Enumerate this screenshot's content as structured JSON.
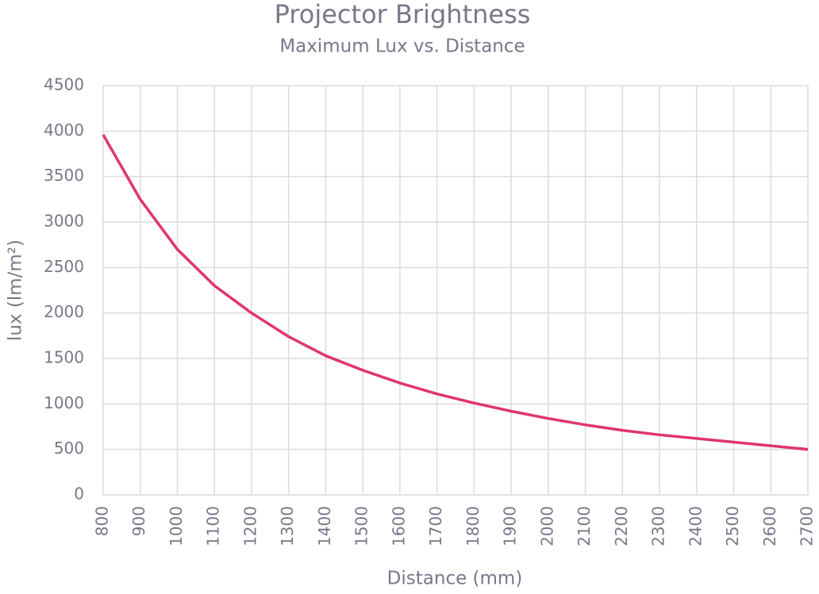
{
  "chart_data": {
    "type": "line",
    "title": "Projector Brightness",
    "subtitle": "Maximum Lux vs. Distance",
    "x_label": "Distance (mm)",
    "y_label": "lux (lm/m²)",
    "x": [
      800,
      900,
      1000,
      1100,
      1200,
      1300,
      1400,
      1500,
      1600,
      1700,
      1800,
      1900,
      2000,
      2100,
      2200,
      2300,
      2400,
      2500,
      2600,
      2700
    ],
    "series": [
      {
        "name": "lux",
        "color": "#e0356f",
        "values": [
          3960,
          3250,
          2700,
          2300,
          2000,
          1740,
          1530,
          1370,
          1230,
          1110,
          1010,
          920,
          840,
          770,
          710,
          660,
          620,
          580,
          540,
          500
        ]
      }
    ],
    "xlim": [
      800,
      2700
    ],
    "xticks": [
      800,
      900,
      1000,
      1100,
      1200,
      1300,
      1400,
      1500,
      1600,
      1700,
      1800,
      1900,
      2000,
      2100,
      2200,
      2300,
      2400,
      2500,
      2600,
      2700
    ],
    "ylim": [
      0,
      4500
    ],
    "yticks": [
      0,
      500,
      1000,
      1500,
      2000,
      2500,
      3000,
      3500,
      4000,
      4500
    ],
    "grid": true
  }
}
